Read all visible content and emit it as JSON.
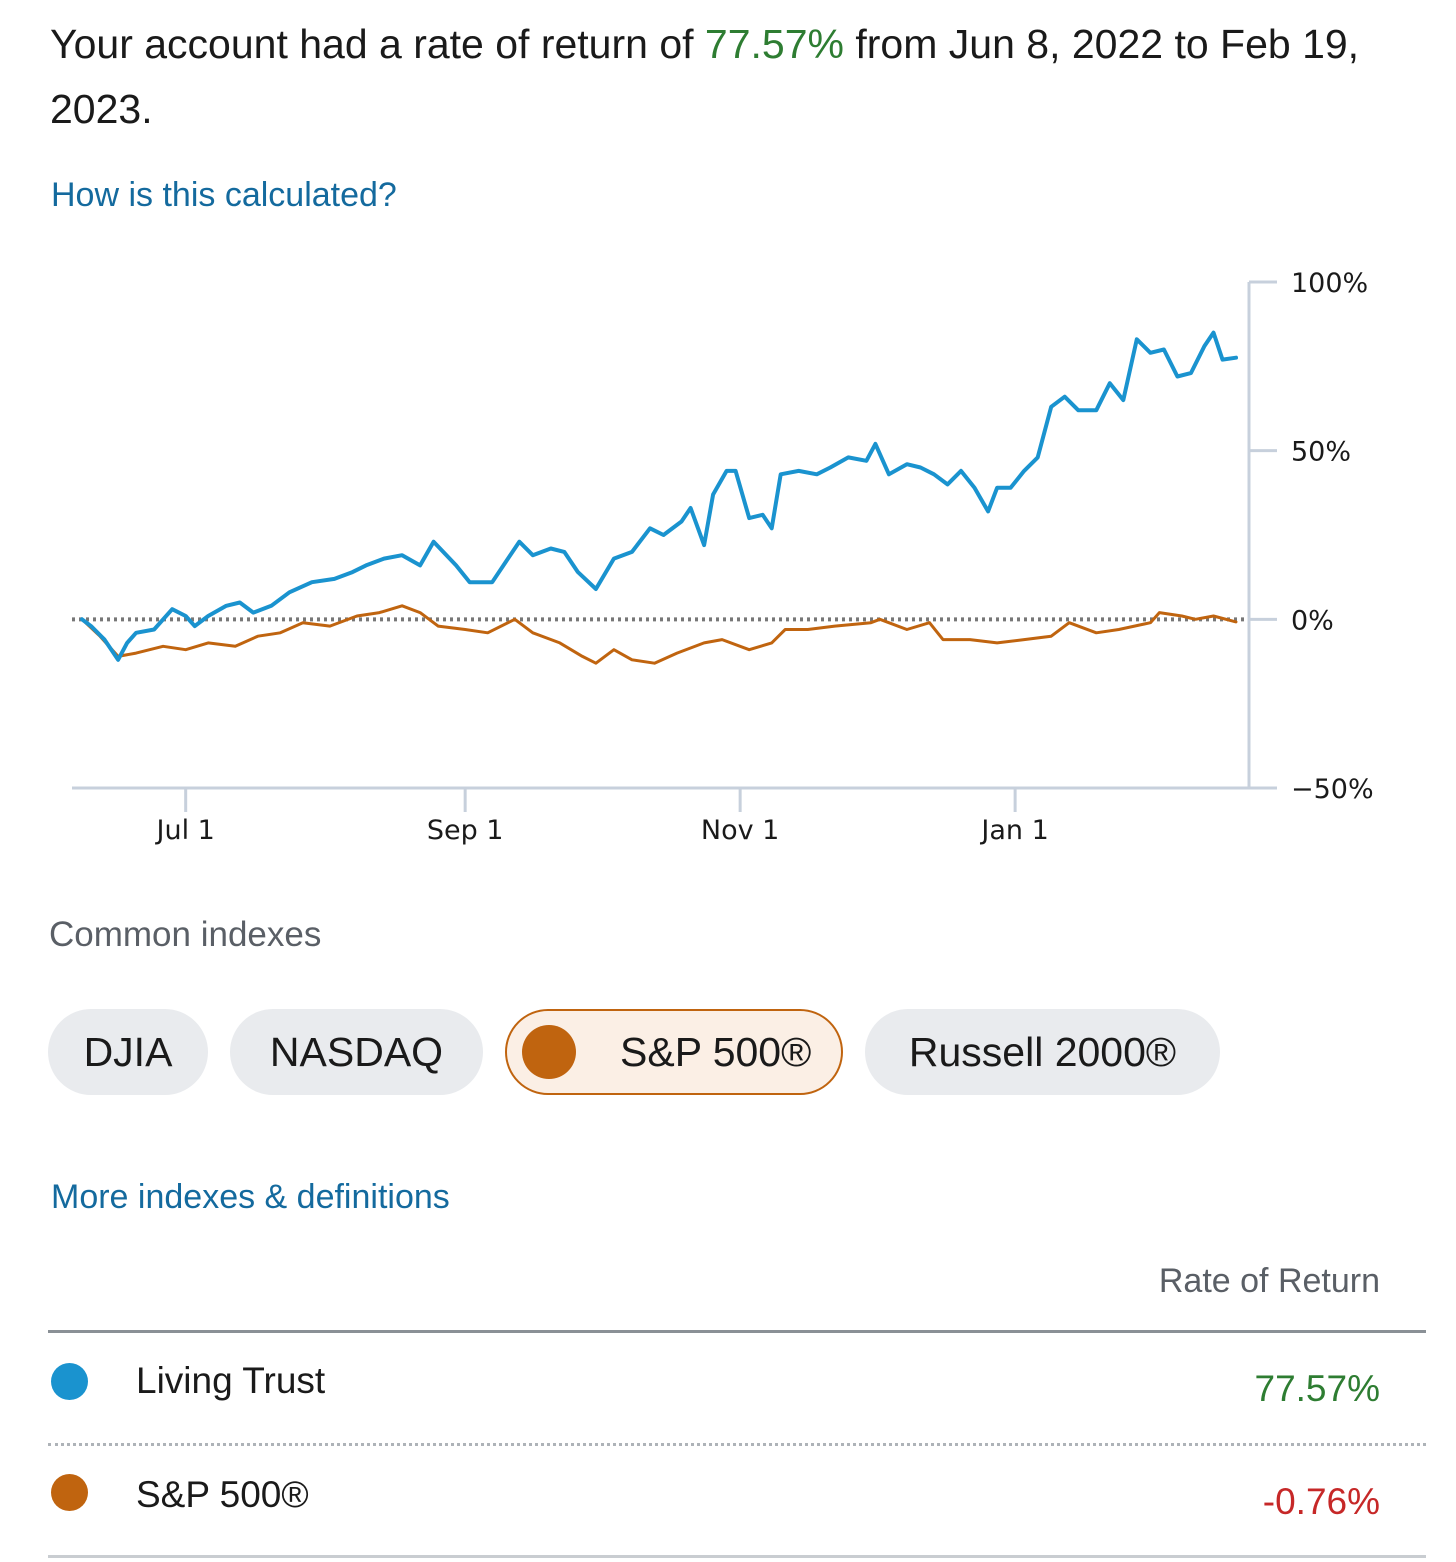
{
  "summary": {
    "prefix": "Your account had a rate of return of ",
    "rate": "77.57%",
    "suffix": " from Jun 8, 2022 to Feb 19, 2023."
  },
  "links": {
    "how_calculated": "How is this calculated?",
    "more_indexes": "More indexes & definitions"
  },
  "colors": {
    "account": "#1a93cf",
    "sp500": "#c0640f",
    "positive": "#2e7d32",
    "negative": "#c62828",
    "axis": "#c7d0dc",
    "zero_line": "#777777"
  },
  "indexes": {
    "label": "Common indexes",
    "items": [
      {
        "label": "DJIA",
        "active": false
      },
      {
        "label": "NASDAQ",
        "active": false
      },
      {
        "label": "S&P 500®",
        "active": true
      },
      {
        "label": "Russell 2000®",
        "active": false
      }
    ]
  },
  "table": {
    "header": "Rate of Return",
    "rows": [
      {
        "name": "Living Trust",
        "value": "77.57%",
        "trend": "positive",
        "color_key": "account"
      },
      {
        "name": "S&P 500®",
        "value": "-0.76%",
        "trend": "negative",
        "color_key": "sp500"
      }
    ]
  },
  "chart_data": {
    "type": "line",
    "title": "",
    "xlabel": "",
    "ylabel": "",
    "x_range": [
      "2022-06-08",
      "2023-02-19"
    ],
    "ylim": [
      -50,
      100
    ],
    "y_ticks": [
      100,
      50,
      0,
      -50
    ],
    "y_tick_labels": [
      "100%",
      "50%",
      "0%",
      "−50%"
    ],
    "x_ticks": [
      {
        "date": "2022-07-01",
        "label": "Jul 1"
      },
      {
        "date": "2022-09-01",
        "label": "Sep 1"
      },
      {
        "date": "2022-11-01",
        "label": "Nov 1"
      },
      {
        "date": "2023-01-01",
        "label": "Jan 1"
      }
    ],
    "zero_reference_line": true,
    "series": [
      {
        "name": "Living Trust",
        "color_key": "account",
        "points": [
          [
            "2022-06-08",
            0
          ],
          [
            "2022-06-10",
            -2
          ],
          [
            "2022-06-13",
            -6
          ],
          [
            "2022-06-16",
            -12
          ],
          [
            "2022-06-18",
            -7
          ],
          [
            "2022-06-20",
            -4
          ],
          [
            "2022-06-24",
            -3
          ],
          [
            "2022-06-28",
            3
          ],
          [
            "2022-07-01",
            1
          ],
          [
            "2022-07-03",
            -2
          ],
          [
            "2022-07-06",
            1
          ],
          [
            "2022-07-10",
            4
          ],
          [
            "2022-07-13",
            5
          ],
          [
            "2022-07-16",
            2
          ],
          [
            "2022-07-20",
            4
          ],
          [
            "2022-07-24",
            8
          ],
          [
            "2022-07-29",
            11
          ],
          [
            "2022-08-03",
            12
          ],
          [
            "2022-08-07",
            14
          ],
          [
            "2022-08-10",
            16
          ],
          [
            "2022-08-14",
            18
          ],
          [
            "2022-08-18",
            19
          ],
          [
            "2022-08-22",
            16
          ],
          [
            "2022-08-25",
            23
          ],
          [
            "2022-08-30",
            16
          ],
          [
            "2022-09-02",
            11
          ],
          [
            "2022-09-07",
            11
          ],
          [
            "2022-09-10",
            17
          ],
          [
            "2022-09-13",
            23
          ],
          [
            "2022-09-16",
            19
          ],
          [
            "2022-09-20",
            21
          ],
          [
            "2022-09-23",
            20
          ],
          [
            "2022-09-26",
            14
          ],
          [
            "2022-09-30",
            9
          ],
          [
            "2022-10-04",
            18
          ],
          [
            "2022-10-08",
            20
          ],
          [
            "2022-10-12",
            27
          ],
          [
            "2022-10-15",
            25
          ],
          [
            "2022-10-19",
            29
          ],
          [
            "2022-10-21",
            33
          ],
          [
            "2022-10-24",
            22
          ],
          [
            "2022-10-26",
            37
          ],
          [
            "2022-10-29",
            44
          ],
          [
            "2022-10-31",
            44
          ],
          [
            "2022-11-03",
            30
          ],
          [
            "2022-11-06",
            31
          ],
          [
            "2022-11-08",
            27
          ],
          [
            "2022-11-10",
            43
          ],
          [
            "2022-11-14",
            44
          ],
          [
            "2022-11-18",
            43
          ],
          [
            "2022-11-21",
            45
          ],
          [
            "2022-11-25",
            48
          ],
          [
            "2022-11-29",
            47
          ],
          [
            "2022-12-01",
            52
          ],
          [
            "2022-12-04",
            43
          ],
          [
            "2022-12-08",
            46
          ],
          [
            "2022-12-11",
            45
          ],
          [
            "2022-12-14",
            43
          ],
          [
            "2022-12-17",
            40
          ],
          [
            "2022-12-20",
            44
          ],
          [
            "2022-12-23",
            39
          ],
          [
            "2022-12-26",
            32
          ],
          [
            "2022-12-28",
            39
          ],
          [
            "2022-12-31",
            39
          ],
          [
            "2023-01-03",
            44
          ],
          [
            "2023-01-06",
            48
          ],
          [
            "2023-01-09",
            63
          ],
          [
            "2023-01-12",
            66
          ],
          [
            "2023-01-15",
            62
          ],
          [
            "2023-01-19",
            62
          ],
          [
            "2023-01-22",
            70
          ],
          [
            "2023-01-25",
            65
          ],
          [
            "2023-01-28",
            83
          ],
          [
            "2023-01-31",
            79
          ],
          [
            "2023-02-03",
            80
          ],
          [
            "2023-02-06",
            72
          ],
          [
            "2023-02-09",
            73
          ],
          [
            "2023-02-12",
            81
          ],
          [
            "2023-02-14",
            85
          ],
          [
            "2023-02-16",
            77
          ],
          [
            "2023-02-19",
            77.57
          ]
        ]
      },
      {
        "name": "S&P 500®",
        "color_key": "sp500",
        "points": [
          [
            "2022-06-08",
            0
          ],
          [
            "2022-06-12",
            -5
          ],
          [
            "2022-06-16",
            -11
          ],
          [
            "2022-06-20",
            -10
          ],
          [
            "2022-06-26",
            -8
          ],
          [
            "2022-07-01",
            -9
          ],
          [
            "2022-07-06",
            -7
          ],
          [
            "2022-07-12",
            -8
          ],
          [
            "2022-07-17",
            -5
          ],
          [
            "2022-07-22",
            -4
          ],
          [
            "2022-07-27",
            -1
          ],
          [
            "2022-08-02",
            -2
          ],
          [
            "2022-08-08",
            1
          ],
          [
            "2022-08-13",
            2
          ],
          [
            "2022-08-18",
            4
          ],
          [
            "2022-08-22",
            2
          ],
          [
            "2022-08-26",
            -2
          ],
          [
            "2022-09-01",
            -3
          ],
          [
            "2022-09-06",
            -4
          ],
          [
            "2022-09-12",
            0
          ],
          [
            "2022-09-16",
            -4
          ],
          [
            "2022-09-22",
            -7
          ],
          [
            "2022-09-27",
            -11
          ],
          [
            "2022-09-30",
            -13
          ],
          [
            "2022-10-04",
            -9
          ],
          [
            "2022-10-08",
            -12
          ],
          [
            "2022-10-13",
            -13
          ],
          [
            "2022-10-18",
            -10
          ],
          [
            "2022-10-24",
            -7
          ],
          [
            "2022-10-28",
            -6
          ],
          [
            "2022-11-03",
            -9
          ],
          [
            "2022-11-08",
            -7
          ],
          [
            "2022-11-11",
            -3
          ],
          [
            "2022-11-16",
            -3
          ],
          [
            "2022-11-22",
            -2
          ],
          [
            "2022-11-30",
            -1
          ],
          [
            "2022-12-02",
            0
          ],
          [
            "2022-12-08",
            -3
          ],
          [
            "2022-12-13",
            -1
          ],
          [
            "2022-12-16",
            -6
          ],
          [
            "2022-12-22",
            -6
          ],
          [
            "2022-12-28",
            -7
          ],
          [
            "2023-01-03",
            -6
          ],
          [
            "2023-01-09",
            -5
          ],
          [
            "2023-01-13",
            -1
          ],
          [
            "2023-01-19",
            -4
          ],
          [
            "2023-01-24",
            -3
          ],
          [
            "2023-01-31",
            -1
          ],
          [
            "2023-02-02",
            2
          ],
          [
            "2023-02-07",
            1
          ],
          [
            "2023-02-10",
            0
          ],
          [
            "2023-02-14",
            1
          ],
          [
            "2023-02-19",
            -0.76
          ]
        ]
      }
    ]
  }
}
